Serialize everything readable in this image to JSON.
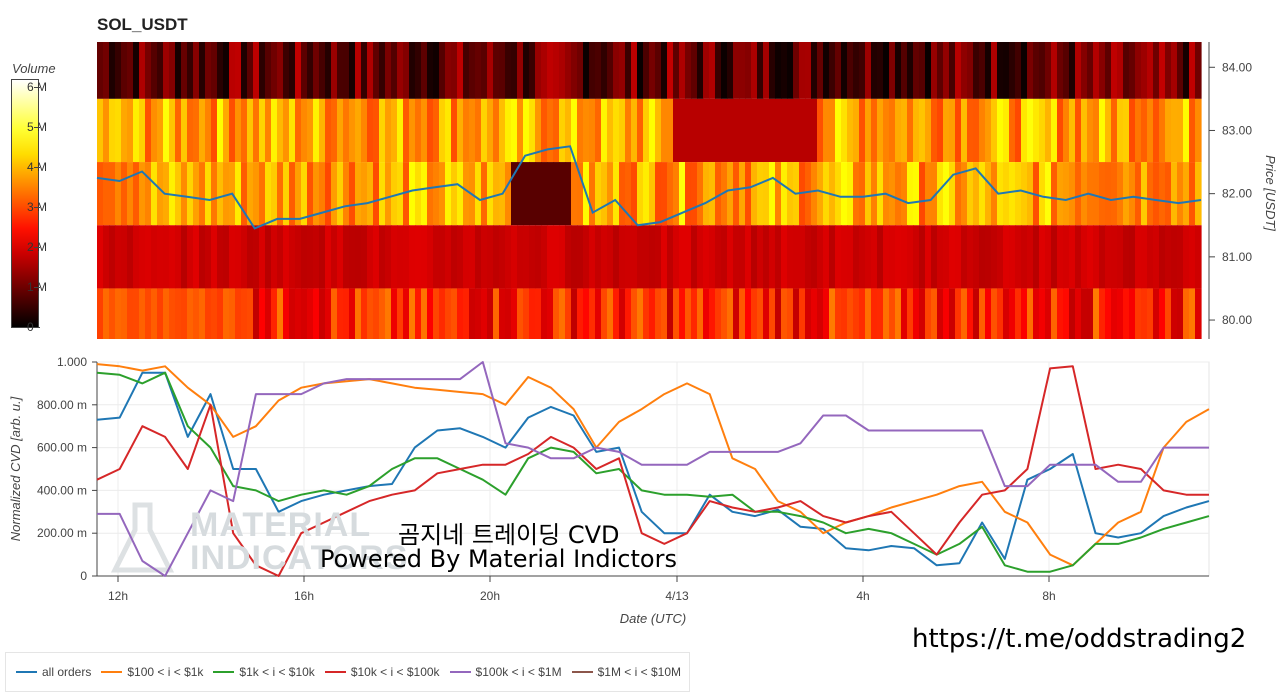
{
  "title": "SOL_USDT",
  "colorbar": {
    "title": "Volume",
    "ticks": [
      "6 M",
      "5 M",
      "4 M",
      "3 M",
      "2 M",
      "1 M",
      "0"
    ]
  },
  "overlay": {
    "line1": "곰지네 트레이딩 CVD",
    "line2": "Powered By Material Indictors"
  },
  "watermark": {
    "line1": "MATERIAL",
    "line2": "INDICATORS"
  },
  "link": "https://t.me/oddstrading2",
  "legend": [
    {
      "label": "all orders",
      "color": "#1f77b4"
    },
    {
      "label": "$100 < i < $1k",
      "color": "#ff7f0e"
    },
    {
      "label": "$1k < i < $10k",
      "color": "#2ca02c"
    },
    {
      "label": "$10k < i < $100k",
      "color": "#d62728"
    },
    {
      "label": "$100k < i < $1M",
      "color": "#9467bd"
    },
    {
      "label": "$1M < i < $10M",
      "color": "#8c564b"
    }
  ],
  "chart_data": [
    {
      "type": "heatmap",
      "title": "SOL_USDT",
      "ylabel": "Price [USDT]",
      "yticks": [
        "84.00",
        "83.00",
        "82.00",
        "81.00",
        "80.00"
      ],
      "price_bands": [
        {
          "low": 83.5,
          "high": 84.5,
          "level": 0.15
        },
        {
          "low": 82.5,
          "high": 83.5,
          "level": 0.62
        },
        {
          "low": 81.5,
          "high": 82.5,
          "level": 0.62
        },
        {
          "low": 80.5,
          "high": 81.5,
          "level": 0.32
        },
        {
          "low": 79.5,
          "high": 80.5,
          "level": 0.42
        }
      ],
      "price_line": {
        "color": "#1f77b4",
        "x": [
          "11:30",
          "12:00",
          "12:30",
          "13:00",
          "13:30",
          "14:00",
          "14:30",
          "15:00",
          "15:30",
          "16:00",
          "16:30",
          "17:00",
          "17:30",
          "18:00",
          "18:30",
          "19:00",
          "19:30",
          "20:00",
          "20:30",
          "21:00",
          "21:30",
          "22:00",
          "22:30",
          "23:00",
          "23:30",
          "00:00",
          "00:30",
          "01:00",
          "01:30",
          "02:00",
          "02:30",
          "03:00",
          "03:30",
          "04:00",
          "04:30",
          "05:00",
          "05:30",
          "06:00",
          "06:30",
          "07:00",
          "07:30",
          "08:00",
          "08:30",
          "09:00",
          "09:30",
          "10:00",
          "10:30",
          "11:00",
          "11:30",
          "12:00"
        ],
        "y": [
          82.25,
          82.2,
          82.35,
          82.0,
          81.95,
          81.9,
          82.0,
          81.45,
          81.6,
          81.6,
          81.7,
          81.8,
          81.85,
          81.95,
          82.05,
          82.1,
          82.15,
          81.9,
          82.0,
          82.6,
          82.7,
          82.75,
          81.7,
          81.9,
          81.5,
          81.55,
          81.7,
          81.85,
          82.05,
          82.1,
          82.25,
          82.0,
          82.05,
          81.95,
          81.95,
          82.0,
          81.85,
          81.9,
          82.3,
          82.4,
          82.0,
          82.05,
          81.95,
          81.9,
          82.0,
          81.9,
          81.95,
          81.9,
          81.85,
          81.9
        ]
      }
    },
    {
      "type": "line",
      "xlabel": "Date (UTC)",
      "ylabel": "Normalized CVD [arb. u.]",
      "ylim": [
        0,
        1
      ],
      "yticks": [
        "1.000",
        "800.00 m",
        "600.00 m",
        "400.00 m",
        "200.00 m",
        "0"
      ],
      "xticks": [
        "12h",
        "16h",
        "20h",
        "4/13",
        "4h",
        "8h"
      ],
      "series": [
        {
          "name": "all orders",
          "color": "#1f77b4",
          "values": [
            0.73,
            0.74,
            0.95,
            0.95,
            0.65,
            0.85,
            0.5,
            0.5,
            0.3,
            0.35,
            0.38,
            0.4,
            0.42,
            0.43,
            0.6,
            0.68,
            0.69,
            0.65,
            0.6,
            0.74,
            0.79,
            0.75,
            0.58,
            0.6,
            0.3,
            0.2,
            0.2,
            0.38,
            0.3,
            0.28,
            0.31,
            0.23,
            0.22,
            0.13,
            0.12,
            0.14,
            0.13,
            0.05,
            0.06,
            0.25,
            0.08,
            0.45,
            0.5,
            0.57,
            0.2,
            0.18,
            0.2,
            0.28,
            0.32,
            0.35
          ]
        },
        {
          "name": "$100 < i < $1k",
          "color": "#ff7f0e",
          "values": [
            0.99,
            0.98,
            0.96,
            0.98,
            0.88,
            0.8,
            0.65,
            0.7,
            0.82,
            0.88,
            0.9,
            0.91,
            0.92,
            0.9,
            0.88,
            0.87,
            0.86,
            0.85,
            0.8,
            0.93,
            0.88,
            0.78,
            0.6,
            0.72,
            0.78,
            0.85,
            0.9,
            0.85,
            0.55,
            0.5,
            0.35,
            0.3,
            0.2,
            0.25,
            0.28,
            0.32,
            0.35,
            0.38,
            0.42,
            0.44,
            0.3,
            0.25,
            0.1,
            0.05,
            0.15,
            0.25,
            0.3,
            0.6,
            0.72,
            0.78
          ]
        },
        {
          "name": "$1k < i < $10k",
          "color": "#2ca02c",
          "values": [
            0.95,
            0.94,
            0.9,
            0.95,
            0.7,
            0.6,
            0.42,
            0.4,
            0.35,
            0.38,
            0.4,
            0.38,
            0.42,
            0.5,
            0.55,
            0.55,
            0.5,
            0.45,
            0.38,
            0.55,
            0.6,
            0.58,
            0.48,
            0.5,
            0.4,
            0.38,
            0.38,
            0.37,
            0.38,
            0.3,
            0.3,
            0.28,
            0.25,
            0.2,
            0.22,
            0.2,
            0.15,
            0.1,
            0.15,
            0.23,
            0.05,
            0.02,
            0.02,
            0.05,
            0.15,
            0.15,
            0.18,
            0.22,
            0.25,
            0.28
          ]
        },
        {
          "name": "$10k < i < $100k",
          "color": "#d62728",
          "values": [
            0.45,
            0.5,
            0.7,
            0.65,
            0.5,
            0.8,
            0.2,
            0.05,
            0.0,
            0.2,
            0.25,
            0.3,
            0.35,
            0.38,
            0.4,
            0.48,
            0.5,
            0.52,
            0.52,
            0.57,
            0.65,
            0.6,
            0.5,
            0.55,
            0.2,
            0.15,
            0.2,
            0.35,
            0.32,
            0.3,
            0.32,
            0.35,
            0.28,
            0.25,
            0.28,
            0.3,
            0.2,
            0.1,
            0.25,
            0.38,
            0.4,
            0.5,
            0.97,
            0.98,
            0.5,
            0.52,
            0.5,
            0.4,
            0.38,
            0.38
          ]
        },
        {
          "name": "$100k < i < $1M",
          "color": "#9467bd",
          "values": [
            0.29,
            0.29,
            0.07,
            0.0,
            0.2,
            0.4,
            0.35,
            0.85,
            0.85,
            0.85,
            0.9,
            0.92,
            0.92,
            0.92,
            0.92,
            0.92,
            0.92,
            1.0,
            0.62,
            0.6,
            0.55,
            0.55,
            0.6,
            0.58,
            0.52,
            0.52,
            0.52,
            0.58,
            0.58,
            0.58,
            0.58,
            0.62,
            0.75,
            0.75,
            0.68,
            0.68,
            0.68,
            0.68,
            0.68,
            0.68,
            0.42,
            0.42,
            0.52,
            0.52,
            0.52,
            0.44,
            0.44,
            0.6,
            0.6,
            0.6
          ]
        },
        {
          "name": "$1M < i < $10M",
          "color": "#8c564b",
          "values": []
        }
      ]
    }
  ]
}
